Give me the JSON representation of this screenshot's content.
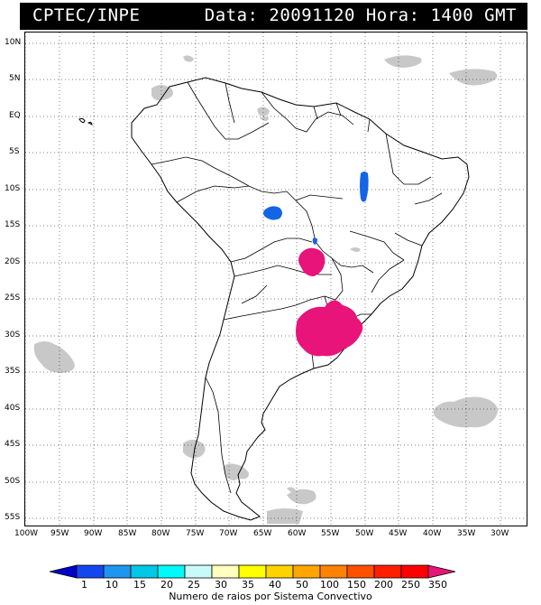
{
  "header": {
    "title": "CPTEC/INPE",
    "info": "Data: 20091120 Hora: 1400 GMT"
  },
  "map": {
    "lat_labels": [
      "10N",
      "5N",
      "EQ",
      "5S",
      "10S",
      "15S",
      "20S",
      "25S",
      "30S",
      "35S",
      "40S",
      "45S",
      "50S",
      "55S"
    ],
    "lon_labels": [
      "100W",
      "95W",
      "90W",
      "85W",
      "80W",
      "75W",
      "70W",
      "65W",
      "60W",
      "55W",
      "50W",
      "45W",
      "40W",
      "35W",
      "30W"
    ],
    "colors": {
      "cloud": "#c8c8c8",
      "storm_high": "#e8147a",
      "storm_low": "#1464e6",
      "grid": "#000000",
      "coast": "#000000"
    }
  },
  "legend": {
    "values": [
      "1",
      "10",
      "15",
      "20",
      "25",
      "30",
      "35",
      "40",
      "50",
      "100",
      "150",
      "200",
      "250",
      "350"
    ],
    "colors": [
      "#0000c8",
      "#1446f0",
      "#1e96f0",
      "#00c8e6",
      "#00fafa",
      "#c8fafa",
      "#ffffbe",
      "#ffff00",
      "#ffd200",
      "#ffa500",
      "#ff8200",
      "#ff5000",
      "#ff1e00",
      "#ff0000",
      "#e8147a"
    ],
    "title": "Numero de raios por Sistema Convectivo"
  }
}
